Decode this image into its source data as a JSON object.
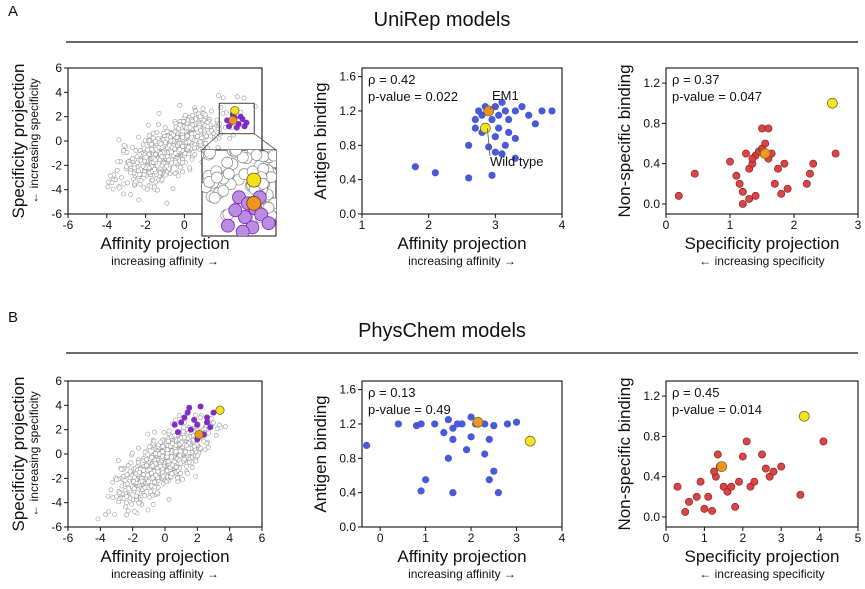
{
  "panels": [
    {
      "letter": "A",
      "heading": "UniRep models"
    },
    {
      "letter": "B",
      "heading": "PhysChem models"
    }
  ],
  "colors": {
    "blue": "#3f51d6",
    "red": "#d83a3a",
    "yellow": "#f2e21a",
    "orange": "#f0961e",
    "purple": "#7b22c2",
    "lightpurple": "#b98de0",
    "gray_point": "#cccccc"
  },
  "chart_data": [
    {
      "type": "scatter",
      "id": "A1",
      "xlabel": "Affinity projection",
      "xsub": "increasing affinity →",
      "ylabel": "Specificity projection",
      "ysub": "← increasing specificity",
      "xlim": [
        -6,
        4
      ],
      "ylim": [
        -6,
        6
      ],
      "xticks": [
        "-6",
        "-4",
        "-2",
        "0",
        "2"
      ],
      "yticks": [
        "-6",
        "-4",
        "-2",
        "0",
        "2",
        "4",
        "6"
      ],
      "background_cloud": {
        "center": [
          -0.6,
          -0.6
        ],
        "n": "dense"
      },
      "series": [
        {
          "color_key": "purple",
          "points": [
            [
              2.4,
              1.6
            ],
            [
              2.6,
              1.9
            ],
            [
              2.8,
              1.4
            ],
            [
              3.0,
              1.8
            ],
            [
              2.3,
              1.2
            ],
            [
              2.7,
              1.1
            ],
            [
              3.2,
              1.5
            ],
            [
              2.5,
              2.2
            ],
            [
              2.9,
              2.0
            ],
            [
              3.1,
              1.2
            ],
            [
              2.2,
              1.7
            ]
          ]
        },
        {
          "color_key": "yellow",
          "points": [
            [
              2.6,
              2.5
            ]
          ]
        },
        {
          "color_key": "orange",
          "points": [
            [
              2.5,
              1.7
            ]
          ]
        }
      ],
      "inset": "zoom of selected region"
    },
    {
      "type": "scatter",
      "id": "A2",
      "xlabel": "Affinity projection",
      "xsub": "increasing affinity →",
      "ylabel": "Antigen binding",
      "xlim": [
        1,
        4
      ],
      "ylim": [
        0,
        1.7
      ],
      "xticks": [
        "1",
        "2",
        "3",
        "4"
      ],
      "yticks": [
        "0.0",
        "0.4",
        "0.8",
        "1.2",
        "1.6"
      ],
      "stats": {
        "rho": "ρ = 0.42",
        "p": "p-value = 0.022"
      },
      "annotations": [
        "EM1",
        "Wild type"
      ],
      "series": [
        {
          "color_key": "blue",
          "points": [
            [
              2.7,
              1.1
            ],
            [
              2.75,
              1.2
            ],
            [
              2.8,
              1.15
            ],
            [
              2.85,
              1.25
            ],
            [
              2.9,
              1.2
            ],
            [
              2.95,
              1.1
            ],
            [
              3.0,
              1.25
            ],
            [
              3.05,
              1.15
            ],
            [
              3.1,
              1.3
            ],
            [
              3.15,
              1.2
            ],
            [
              3.2,
              1.1
            ],
            [
              3.3,
              1.2
            ],
            [
              3.4,
              1.25
            ],
            [
              3.5,
              1.15
            ],
            [
              3.6,
              1.05
            ],
            [
              3.7,
              1.2
            ],
            [
              3.85,
              1.2
            ],
            [
              2.7,
              1.0
            ],
            [
              2.8,
              0.95
            ],
            [
              3.0,
              0.9
            ],
            [
              3.05,
              1.0
            ],
            [
              3.2,
              0.95
            ],
            [
              3.3,
              0.88
            ],
            [
              2.6,
              0.8
            ],
            [
              2.9,
              0.78
            ],
            [
              3.0,
              0.72
            ],
            [
              3.1,
              0.7
            ],
            [
              3.3,
              0.65
            ],
            [
              1.8,
              0.55
            ],
            [
              2.1,
              0.48
            ],
            [
              2.6,
              0.42
            ],
            [
              2.95,
              0.45
            ],
            [
              3.15,
              0.8
            ]
          ]
        },
        {
          "color_key": "yellow",
          "points": [
            [
              2.85,
              1.0
            ]
          ]
        },
        {
          "color_key": "orange",
          "points": [
            [
              2.9,
              1.2
            ]
          ]
        }
      ]
    },
    {
      "type": "scatter",
      "id": "A3",
      "xlabel": "Specificity projection",
      "xsub": "← increasing specificity",
      "ylabel": "Non-specific binding",
      "xlim": [
        0,
        3
      ],
      "ylim": [
        -0.1,
        1.35
      ],
      "xticks": [
        "0",
        "1",
        "2",
        "3"
      ],
      "yticks": [
        "0.0",
        "0.4",
        "0.8",
        "1.2"
      ],
      "stats": {
        "rho": "ρ = 0.37",
        "p": "p-value = 0.047"
      },
      "series": [
        {
          "color_key": "red",
          "points": [
            [
              0.2,
              0.08
            ],
            [
              0.45,
              0.3
            ],
            [
              1.0,
              0.42
            ],
            [
              1.1,
              0.28
            ],
            [
              1.15,
              0.2
            ],
            [
              1.2,
              0.12
            ],
            [
              1.25,
              0.5
            ],
            [
              1.3,
              0.35
            ],
            [
              1.35,
              0.4
            ],
            [
              1.4,
              0.48
            ],
            [
              1.45,
              0.52
            ],
            [
              1.5,
              0.55
            ],
            [
              1.55,
              0.6
            ],
            [
              1.5,
              0.75
            ],
            [
              1.6,
              0.75
            ],
            [
              1.6,
              0.45
            ],
            [
              1.65,
              0.5
            ],
            [
              1.7,
              0.2
            ],
            [
              1.75,
              0.35
            ],
            [
              1.8,
              0.1
            ],
            [
              1.85,
              0.4
            ],
            [
              1.9,
              0.15
            ],
            [
              2.2,
              0.2
            ],
            [
              2.25,
              0.3
            ],
            [
              2.3,
              0.4
            ],
            [
              1.2,
              0.0
            ],
            [
              1.3,
              0.05
            ],
            [
              1.4,
              0.08
            ],
            [
              1.35,
              0.45
            ],
            [
              2.65,
              0.5
            ]
          ]
        },
        {
          "color_key": "yellow",
          "points": [
            [
              2.6,
              1.0
            ]
          ]
        },
        {
          "color_key": "orange",
          "points": [
            [
              1.55,
              0.5
            ]
          ]
        }
      ]
    },
    {
      "type": "scatter",
      "id": "B1",
      "xlabel": "Affinity projection",
      "xsub": "increasing affinity →",
      "ylabel": "Specificity projection",
      "ysub": "← increasing specificity",
      "xlim": [
        -6,
        6
      ],
      "ylim": [
        -6,
        6
      ],
      "xticks": [
        "-6",
        "-4",
        "-2",
        "0",
        "2",
        "4",
        "6"
      ],
      "yticks": [
        "-6",
        "-4",
        "-2",
        "0",
        "2",
        "4",
        "6"
      ],
      "background_cloud": {
        "center": [
          -0.2,
          -0.8
        ],
        "n": "dense"
      },
      "series": [
        {
          "color_key": "purple",
          "points": [
            [
              1.0,
              2.6
            ],
            [
              1.4,
              3.4
            ],
            [
              1.8,
              2.8
            ],
            [
              2.2,
              3.9
            ],
            [
              2.6,
              2.6
            ],
            [
              0.8,
              1.8
            ],
            [
              1.6,
              2.0
            ],
            [
              2.0,
              1.2
            ],
            [
              2.4,
              1.6
            ],
            [
              1.2,
              3.0
            ],
            [
              3.0,
              3.4
            ],
            [
              2.8,
              2.2
            ],
            [
              1.5,
              3.8
            ],
            [
              2.0,
              2.4
            ],
            [
              0.6,
              2.4
            ],
            [
              2.6,
              3.0
            ]
          ]
        },
        {
          "color_key": "yellow",
          "points": [
            [
              3.4,
              3.6
            ]
          ]
        },
        {
          "color_key": "orange",
          "points": [
            [
              2.1,
              1.6
            ]
          ]
        }
      ]
    },
    {
      "type": "scatter",
      "id": "B2",
      "xlabel": "Affinity projection",
      "xsub": "increasing affinity →",
      "ylabel": "Antigen binding",
      "xlim": [
        -0.4,
        4
      ],
      "ylim": [
        0,
        1.7
      ],
      "xticks": [
        "0",
        "1",
        "2",
        "3",
        "4"
      ],
      "yticks": [
        "0.0",
        "0.4",
        "0.8",
        "1.2",
        "1.6"
      ],
      "stats": {
        "rho": "ρ = 0.13",
        "p": "p-value = 0.49"
      },
      "series": [
        {
          "color_key": "blue",
          "points": [
            [
              -0.3,
              0.95
            ],
            [
              0.4,
              1.2
            ],
            [
              0.8,
              1.18
            ],
            [
              0.9,
              1.2
            ],
            [
              1.2,
              1.2
            ],
            [
              1.5,
              1.25
            ],
            [
              1.6,
              1.15
            ],
            [
              1.8,
              1.2
            ],
            [
              2.0,
              1.28
            ],
            [
              2.1,
              1.2
            ],
            [
              2.3,
              1.2
            ],
            [
              2.5,
              1.18
            ],
            [
              2.8,
              1.2
            ],
            [
              3.0,
              1.22
            ],
            [
              1.4,
              1.1
            ],
            [
              1.6,
              1.02
            ],
            [
              2.0,
              1.05
            ],
            [
              2.4,
              1.02
            ],
            [
              1.9,
              0.9
            ],
            [
              2.3,
              0.85
            ],
            [
              1.5,
              0.8
            ],
            [
              2.5,
              0.65
            ],
            [
              2.4,
              0.55
            ],
            [
              1.0,
              0.55
            ],
            [
              0.9,
              0.42
            ],
            [
              1.6,
              0.4
            ],
            [
              2.6,
              0.4
            ],
            [
              1.7,
              1.2
            ]
          ]
        },
        {
          "color_key": "yellow",
          "points": [
            [
              3.3,
              1.0
            ]
          ]
        },
        {
          "color_key": "orange",
          "points": [
            [
              2.15,
              1.22
            ]
          ]
        }
      ]
    },
    {
      "type": "scatter",
      "id": "B3",
      "xlabel": "Specificity projection",
      "xsub": "← increasing specificity",
      "ylabel": "Non-specific binding",
      "xlim": [
        0,
        5
      ],
      "ylim": [
        -0.1,
        1.35
      ],
      "xticks": [
        "0",
        "1",
        "2",
        "3",
        "4",
        "5"
      ],
      "yticks": [
        "0.0",
        "0.4",
        "0.8",
        "1.2"
      ],
      "stats": {
        "rho": "ρ = 0.45",
        "p": "p-value = 0.014"
      },
      "series": [
        {
          "color_key": "red",
          "points": [
            [
              0.3,
              0.3
            ],
            [
              0.5,
              0.05
            ],
            [
              0.6,
              0.15
            ],
            [
              0.8,
              0.2
            ],
            [
              0.9,
              0.35
            ],
            [
              1.0,
              0.08
            ],
            [
              1.1,
              0.2
            ],
            [
              1.2,
              0.06
            ],
            [
              1.3,
              0.4
            ],
            [
              1.4,
              0.5
            ],
            [
              1.5,
              0.3
            ],
            [
              1.6,
              0.25
            ],
            [
              1.7,
              0.3
            ],
            [
              1.8,
              0.1
            ],
            [
              1.9,
              0.35
            ],
            [
              2.0,
              0.6
            ],
            [
              2.1,
              0.75
            ],
            [
              2.2,
              0.3
            ],
            [
              2.3,
              0.35
            ],
            [
              2.5,
              0.62
            ],
            [
              2.6,
              0.48
            ],
            [
              2.7,
              0.4
            ],
            [
              2.8,
              0.45
            ],
            [
              3.0,
              0.5
            ],
            [
              3.5,
              0.22
            ],
            [
              4.1,
              0.75
            ],
            [
              1.35,
              0.62
            ],
            [
              1.25,
              0.45
            ]
          ]
        },
        {
          "color_key": "yellow",
          "points": [
            [
              3.6,
              1.0
            ]
          ]
        },
        {
          "color_key": "orange",
          "points": [
            [
              1.45,
              0.5
            ]
          ]
        }
      ]
    }
  ]
}
